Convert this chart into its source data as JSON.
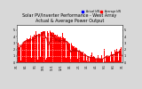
{
  "title": "Solar PV/Inverter Performance - West Array\nActual & Average Power Output",
  "title_fontsize": 3.5,
  "bg_color": "#d8d8d8",
  "plot_bg_color": "#ffffff",
  "bar_color": "#ff0000",
  "avg_line_color": "#cc0000",
  "grid_color": "#aaaaaa",
  "legend_actual_label": "Actual kW",
  "legend_actual_color": "#0000ff",
  "legend_average_label": "Average kW",
  "legend_average_color": "#ff0000",
  "x_tick_labels": [
    "7/1",
    "8/1",
    "9/1",
    "10/1",
    "11/1",
    "12/1",
    "1/1",
    "2/1",
    "3/1",
    "4/1",
    "5/1",
    "6/1",
    "7/1"
  ],
  "x_tick_positions": [
    0,
    31,
    62,
    92,
    123,
    153,
    184,
    215,
    243,
    274,
    304,
    335,
    365
  ],
  "y_tick_labels": [
    "0",
    "1",
    "2",
    "3",
    "4",
    "5"
  ],
  "y_tick_values": [
    0,
    1,
    2,
    3,
    4,
    5
  ],
  "ylim": [
    0,
    5.8
  ],
  "xlim": [
    0,
    365
  ],
  "num_points": 365
}
